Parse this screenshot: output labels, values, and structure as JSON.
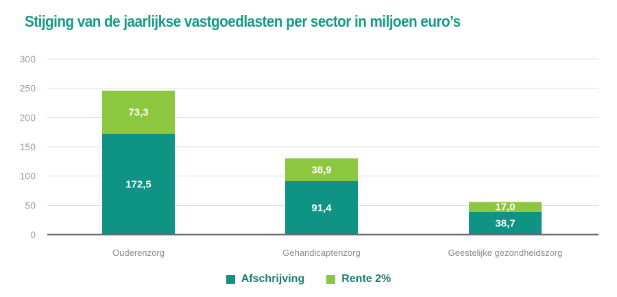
{
  "chart_data": {
    "type": "bar",
    "stacked": true,
    "title": "Stijging van de jaarlijkse vastgoedlasten per sector in miljoen euro’s",
    "categories": [
      "Ouderenzorg",
      "Gehandicaptenzorg",
      "Geestelijke gezondheidszorg"
    ],
    "series": [
      {
        "name": "Afschrijving",
        "values": [
          172.5,
          91.4,
          38.7
        ],
        "labels": [
          "172,5",
          "91,4",
          "38,7"
        ],
        "color": "#0e9384"
      },
      {
        "name": "Rente 2%",
        "values": [
          73.3,
          38.9,
          17.0
        ],
        "labels": [
          "73,3",
          "38,9",
          "17,0"
        ],
        "color": "#8dc63f"
      }
    ],
    "yticks": [
      0,
      50,
      100,
      150,
      200,
      250,
      300
    ],
    "ylim": [
      0,
      300
    ],
    "grid": true,
    "legend": "bottom-center",
    "xlabel": "",
    "ylabel": ""
  }
}
